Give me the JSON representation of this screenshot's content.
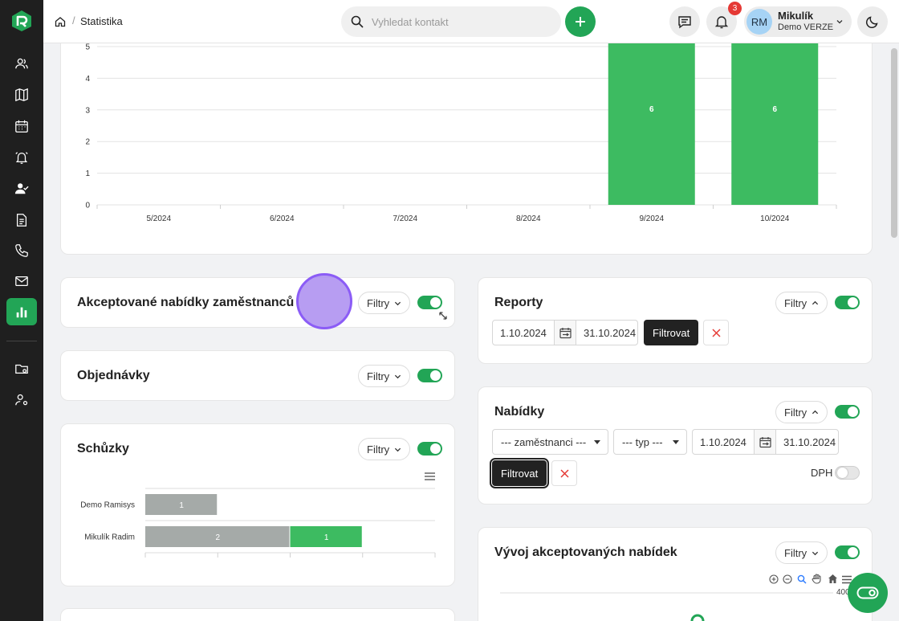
{
  "header": {
    "breadcrumb": "Statistika",
    "breadcrumb_sep": "/",
    "search_placeholder": "Vyhledat kontakt",
    "notifications_count": "3",
    "user": {
      "initials": "RM",
      "name": "Mikulík",
      "org": "Demo VERZE"
    }
  },
  "sidebar": {
    "items": [
      "contacts",
      "map",
      "calendar",
      "alarm",
      "user-check",
      "document",
      "phone",
      "mail",
      "statistics",
      "folder-settings",
      "user-settings"
    ],
    "active": "statistics"
  },
  "top_chart": {
    "chart_data": {
      "type": "bar",
      "categories": [
        "5/2024",
        "6/2024",
        "7/2024",
        "8/2024",
        "9/2024",
        "10/2024"
      ],
      "values": [
        0,
        0,
        0,
        0,
        6,
        6
      ],
      "data_labels": [
        "",
        "",
        "",
        "",
        "6",
        "6"
      ],
      "yticks": [
        "0",
        "1",
        "2",
        "3",
        "4",
        "5"
      ],
      "ylim": [
        0,
        6
      ],
      "color": "#3dbb61"
    }
  },
  "accepted_offers": {
    "title": "Akceptované nabídky zaměstnanců",
    "filter_label": "Filtry"
  },
  "orders": {
    "title": "Objednávky",
    "filter_label": "Filtry"
  },
  "meetings": {
    "title": "Schůzky",
    "filter_label": "Filtry",
    "chart_data": {
      "type": "bar",
      "orientation": "horizontal",
      "stacked": true,
      "categories": [
        "Demo Ramisys",
        "Mikulík Radim"
      ],
      "series": [
        {
          "values": [
            1,
            2
          ],
          "color": "#a5aaa8"
        },
        {
          "values": [
            0,
            1
          ],
          "color": "#3dbb61"
        }
      ],
      "xlim": [
        0,
        4
      ]
    }
  },
  "reports": {
    "title": "Reporty",
    "filter_label": "Filtry",
    "date_from": "1.10.2024",
    "date_to": "31.10.2024",
    "filter_button": "Filtrovat"
  },
  "offers": {
    "title": "Nabídky",
    "filter_label": "Filtry",
    "employees_select": "--- zaměstnanci ---",
    "type_select": "--- typ ---",
    "date_from": "1.10.2024",
    "date_to": "31.10.2024",
    "filter_button": "Filtrovat",
    "vat_label": "DPH"
  },
  "accepted_trend": {
    "title": "Vývoj akceptovaných nabídek",
    "filter_label": "Filtry",
    "y_top_label": "400"
  }
}
